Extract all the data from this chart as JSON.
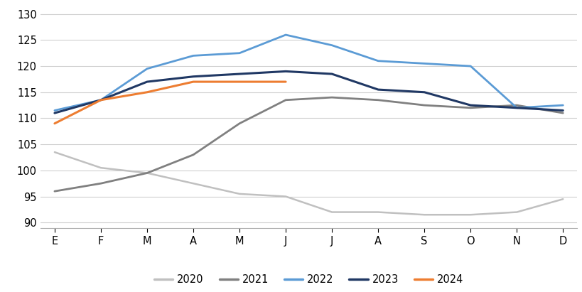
{
  "months": [
    "E",
    "F",
    "M",
    "A",
    "M",
    "J",
    "J",
    "A",
    "S",
    "O",
    "N",
    "D"
  ],
  "series": {
    "2020": [
      103.5,
      100.5,
      99.5,
      97.5,
      95.5,
      95.0,
      92.0,
      92.0,
      91.5,
      91.5,
      92.0,
      94.5
    ],
    "2021": [
      96.0,
      97.5,
      99.5,
      103.0,
      109.0,
      113.5,
      114.0,
      113.5,
      112.5,
      112.0,
      112.5,
      111.0
    ],
    "2022": [
      111.5,
      113.5,
      119.5,
      122.0,
      122.5,
      126.0,
      124.0,
      121.0,
      120.5,
      120.0,
      112.0,
      112.5
    ],
    "2023": [
      111.0,
      113.5,
      117.0,
      118.0,
      118.5,
      119.0,
      118.5,
      115.5,
      115.0,
      112.5,
      112.0,
      111.5
    ],
    "2024": [
      109.0,
      113.5,
      115.0,
      117.0,
      117.0,
      117.0
    ]
  },
  "colors": {
    "2020": "#c0c0c0",
    "2021": "#808080",
    "2022": "#5b9bd5",
    "2023": "#203864",
    "2024": "#ed7d31"
  },
  "linewidths": {
    "2020": 1.8,
    "2021": 2.0,
    "2022": 2.0,
    "2023": 2.2,
    "2024": 2.2
  },
  "ylim": [
    89,
    131
  ],
  "yticks": [
    90,
    95,
    100,
    105,
    110,
    115,
    120,
    125,
    130
  ],
  "grid_color": "#d0d0d0",
  "bg_color": "#ffffff",
  "legend_labels": [
    "2020",
    "2021",
    "2022",
    "2023",
    "2024"
  ]
}
